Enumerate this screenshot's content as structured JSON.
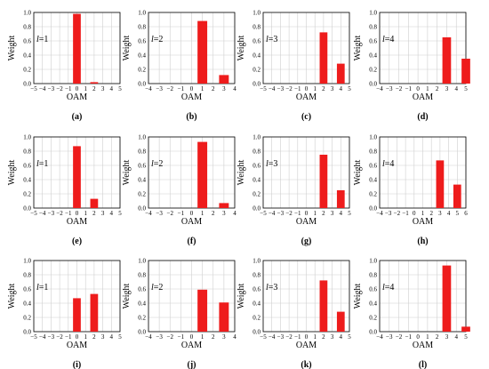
{
  "figure": {
    "bar_color": "#ee1c1c",
    "grid_color": "#cfcfcf",
    "y_tick_labels": [
      "0.0",
      "0.2",
      "0.4",
      "0.6",
      "0.8",
      "1.0"
    ],
    "ylabel": "Weight",
    "xlabel": "OAM"
  },
  "chart_data": [
    {
      "id": "a",
      "caption": "(a)",
      "type": "bar",
      "l_label": "1",
      "x": [
        -5,
        -4,
        -3,
        -2,
        -1,
        0,
        1,
        2,
        3,
        4,
        5
      ],
      "x_tick_labels": [
        "−5",
        "−4",
        "−3",
        "−2",
        "−1",
        "0",
        "1",
        "2",
        "3",
        "4",
        "5"
      ],
      "values": [
        0,
        0,
        0,
        0,
        0,
        0.98,
        0,
        0.02,
        0,
        0,
        0
      ],
      "ylim": [
        0,
        1.0
      ],
      "xlabel": "OAM",
      "ylabel": "Weight"
    },
    {
      "id": "b",
      "caption": "(b)",
      "type": "bar",
      "l_label": "2",
      "x": [
        -4,
        -3,
        -2,
        -1,
        0,
        1,
        2,
        3,
        4
      ],
      "x_tick_labels": [
        "−4",
        "−3",
        "−2",
        "−1",
        "0",
        "1",
        "2",
        "3",
        "4"
      ],
      "values": [
        0,
        0,
        0,
        0,
        0,
        0.88,
        0,
        0.12,
        0
      ],
      "ylim": [
        0,
        1.0
      ],
      "xlabel": "OAM",
      "ylabel": "Weight"
    },
    {
      "id": "c",
      "caption": "(c)",
      "type": "bar",
      "l_label": "3",
      "x": [
        -5,
        -4,
        -3,
        -2,
        -1,
        0,
        1,
        2,
        3,
        4,
        5
      ],
      "x_tick_labels": [
        "−5",
        "−4",
        "−3",
        "−2",
        "−1",
        "0",
        "1",
        "2",
        "3",
        "4",
        "5"
      ],
      "values": [
        0,
        0,
        0,
        0,
        0,
        0,
        0,
        0.72,
        0,
        0.28,
        0
      ],
      "ylim": [
        0,
        1.0
      ],
      "xlabel": "OAM",
      "ylabel": "Weight"
    },
    {
      "id": "d",
      "caption": "(d)",
      "type": "bar",
      "l_label": "4",
      "x": [
        -4,
        -3,
        -2,
        -1,
        0,
        1,
        2,
        3,
        4,
        5
      ],
      "x_tick_labels": [
        "−4",
        "−3",
        "−2",
        "−1",
        "0",
        "1",
        "2",
        "3",
        "4",
        "5"
      ],
      "values": [
        0,
        0,
        0,
        0,
        0,
        0,
        0,
        0.65,
        0,
        0.35
      ],
      "ylim": [
        0,
        1.0
      ],
      "xlabel": "OAM",
      "ylabel": "Weight"
    },
    {
      "id": "e",
      "caption": "(e)",
      "type": "bar",
      "l_label": "1",
      "x": [
        -5,
        -4,
        -3,
        -2,
        -1,
        0,
        1,
        2,
        3,
        4,
        5
      ],
      "x_tick_labels": [
        "−5",
        "−4",
        "−3",
        "−2",
        "−1",
        "0",
        "1",
        "2",
        "3",
        "4",
        "5"
      ],
      "values": [
        0,
        0,
        0,
        0,
        0,
        0.87,
        0,
        0.13,
        0,
        0,
        0
      ],
      "ylim": [
        0,
        1.0
      ],
      "xlabel": "OAM",
      "ylabel": "Weight"
    },
    {
      "id": "f",
      "caption": "(f)",
      "type": "bar",
      "l_label": "2",
      "x": [
        -4,
        -3,
        -2,
        -1,
        0,
        1,
        2,
        3,
        4
      ],
      "x_tick_labels": [
        "−4",
        "−3",
        "−2",
        "−1",
        "0",
        "1",
        "2",
        "3",
        "4"
      ],
      "values": [
        0,
        0,
        0,
        0,
        0,
        0.93,
        0,
        0.07,
        0
      ],
      "ylim": [
        0,
        1.0
      ],
      "xlabel": "OAM",
      "ylabel": "Weight"
    },
    {
      "id": "g",
      "caption": "(g)",
      "type": "bar",
      "l_label": "3",
      "x": [
        -5,
        -4,
        -3,
        -2,
        -1,
        0,
        1,
        2,
        3,
        4,
        5
      ],
      "x_tick_labels": [
        "−5",
        "−4",
        "−3",
        "−2",
        "−1",
        "0",
        "1",
        "2",
        "3",
        "4",
        "5"
      ],
      "values": [
        0,
        0,
        0,
        0,
        0,
        0,
        0,
        0.75,
        0,
        0.25,
        0
      ],
      "ylim": [
        0,
        1.0
      ],
      "xlabel": "OAM",
      "ylabel": "Weight"
    },
    {
      "id": "h",
      "caption": "(h)",
      "type": "bar",
      "l_label": "4",
      "x": [
        -4,
        -3,
        -2,
        -1,
        0,
        1,
        2,
        3,
        4,
        5,
        6
      ],
      "x_tick_labels": [
        "−4",
        "−3",
        "−2",
        "−1",
        "0",
        "1",
        "2",
        "3",
        "4",
        "5",
        "6"
      ],
      "values": [
        0,
        0,
        0,
        0,
        0,
        0,
        0,
        0.67,
        0,
        0.33,
        0
      ],
      "ylim": [
        0,
        1.0
      ],
      "xlabel": "OAM",
      "ylabel": "Weight"
    },
    {
      "id": "i",
      "caption": "(i)",
      "type": "bar",
      "l_label": "1",
      "x": [
        -5,
        -4,
        -3,
        -2,
        -1,
        0,
        1,
        2,
        3,
        4,
        5
      ],
      "x_tick_labels": [
        "−5",
        "−4",
        "−3",
        "−2",
        "−1",
        "0",
        "1",
        "2",
        "3",
        "4",
        "5"
      ],
      "values": [
        0,
        0,
        0,
        0,
        0,
        0.47,
        0,
        0.53,
        0,
        0,
        0
      ],
      "ylim": [
        0,
        1.0
      ],
      "xlabel": "OAM",
      "ylabel": "Weight"
    },
    {
      "id": "j",
      "caption": "(j)",
      "type": "bar",
      "l_label": "2",
      "x": [
        -4,
        -3,
        -2,
        -1,
        0,
        1,
        2,
        3,
        4
      ],
      "x_tick_labels": [
        "−4",
        "−3",
        "−2",
        "−1",
        "0",
        "1",
        "2",
        "3",
        "4"
      ],
      "values": [
        0,
        0,
        0,
        0,
        0,
        0.59,
        0,
        0.41,
        0
      ],
      "ylim": [
        0,
        1.0
      ],
      "xlabel": "OAM",
      "ylabel": "Weight"
    },
    {
      "id": "k",
      "caption": "(k)",
      "type": "bar",
      "l_label": "3",
      "x": [
        -5,
        -4,
        -3,
        -2,
        -1,
        0,
        1,
        2,
        3,
        4,
        5
      ],
      "x_tick_labels": [
        "−5",
        "−4",
        "−3",
        "−2",
        "−1",
        "0",
        "1",
        "2",
        "3",
        "4",
        "5"
      ],
      "values": [
        0,
        0,
        0,
        0,
        0,
        0,
        0,
        0.72,
        0,
        0.28,
        0
      ],
      "ylim": [
        0,
        1.0
      ],
      "xlabel": "OAM",
      "ylabel": "Weight"
    },
    {
      "id": "l",
      "caption": "(l)",
      "type": "bar",
      "l_label": "4",
      "x": [
        -4,
        -3,
        -2,
        -1,
        0,
        1,
        2,
        3,
        4,
        5
      ],
      "x_tick_labels": [
        "−4",
        "−3",
        "−2",
        "−1",
        "0",
        "1",
        "2",
        "3",
        "4",
        "5"
      ],
      "values": [
        0,
        0,
        0,
        0,
        0,
        0,
        0,
        0.93,
        0,
        0.07
      ],
      "ylim": [
        0,
        1.0
      ],
      "xlabel": "OAM",
      "ylabel": "Weight"
    }
  ]
}
